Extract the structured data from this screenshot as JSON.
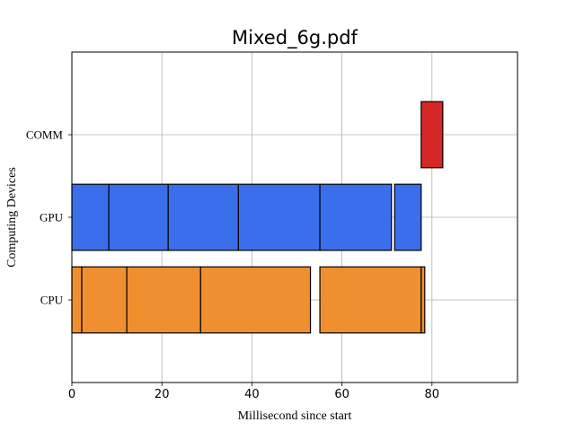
{
  "chart_data": {
    "type": "bar",
    "orientation": "horizontal",
    "title": "Mixed_6g.pdf",
    "xlabel": "Millisecond since start",
    "ylabel": "Computing Devices",
    "xlim": [
      0,
      99
    ],
    "xticks": [
      0,
      20,
      40,
      60,
      80
    ],
    "xtick_labels": [
      "0",
      "20",
      "40",
      "60",
      "80"
    ],
    "categories": [
      "CPU",
      "GPU",
      "COMM"
    ],
    "grid": true,
    "series": [
      {
        "category": "CPU",
        "color": "#EF8F2F",
        "segments": [
          [
            0,
            2.2
          ],
          [
            2.2,
            12.2
          ],
          [
            12.2,
            28.6
          ],
          [
            28.6,
            53
          ],
          [
            55.1,
            77.6
          ],
          [
            77.6,
            78.4
          ]
        ]
      },
      {
        "category": "GPU",
        "color": "#3A6EEB",
        "segments": [
          [
            0,
            8.2
          ],
          [
            8.2,
            21.4
          ],
          [
            21.4,
            37
          ],
          [
            37,
            55.1
          ],
          [
            55.1,
            71
          ],
          [
            71.7,
            77.6
          ]
        ]
      },
      {
        "category": "COMM",
        "color": "#D62728",
        "segments": [
          [
            77.6,
            82.4
          ]
        ]
      }
    ]
  }
}
